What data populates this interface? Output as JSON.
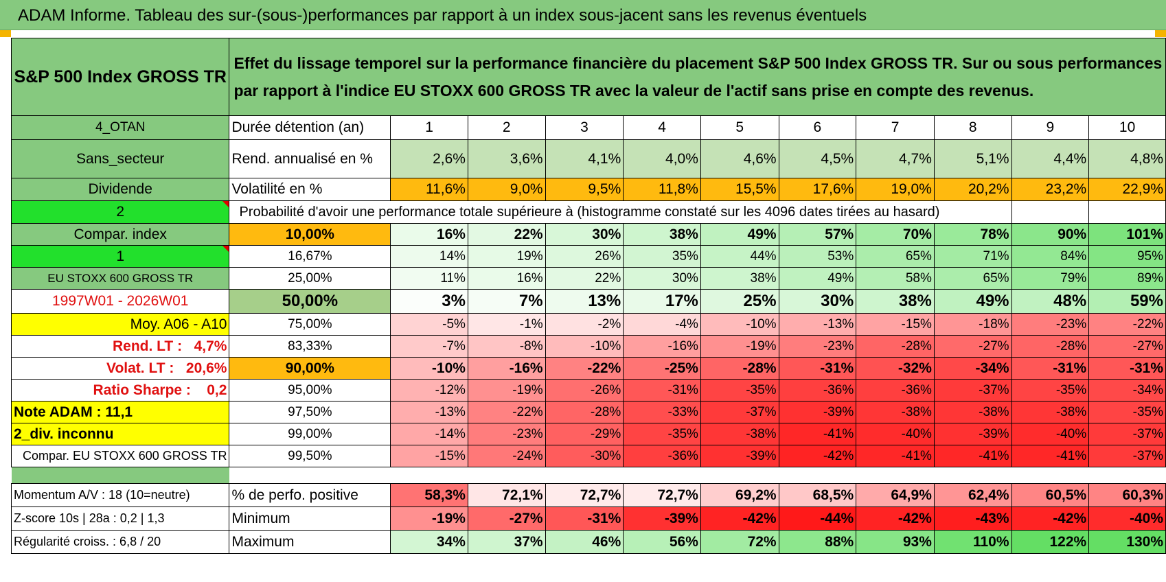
{
  "title": "ADAM Informe. Tableau des sur-(sous-)performances par rapport à un index sous-jacent sans les revenus éventuels",
  "header": {
    "asset": "S&P 500 Index GROSS TR",
    "description": "Effet du lissage temporel sur la performance financière du placement S&P 500 Index GROSS TR. Sur ou sous performances par rapport à l'indice EU STOXX 600 GROSS TR avec la valeur de l'actif sans prise en compte des revenus."
  },
  "side_labels": {
    "region": "4_OTAN",
    "sector": "Sans_secteur",
    "income": "Dividende",
    "sel_a": "2",
    "compar_index": "Compar. index",
    "sel_b": "1",
    "index_name": "EU STOXX 600 GROSS TR",
    "period": "1997W01 - 2026W01",
    "moy": "Moy. A06 - A10",
    "rend_lt_label": "Rend. LT :",
    "rend_lt_value": "4,7%",
    "volat_lt_label": "Volat. LT :",
    "volat_lt_value": "20,6%",
    "sharpe_label": "Ratio Sharpe :",
    "sharpe_value": "0,2",
    "note_adam": "Note ADAM : 11,1",
    "div_inconnu": "2_div. inconnu",
    "compar_name": "Compar. EU STOXX 600 GROSS TR"
  },
  "row_labels": {
    "duration": "Durée détention (an)",
    "rend": "Rend. annualisé en %",
    "vol": "Volatilité en %",
    "probability": "Probabilité d'avoir une performance totale supérieure à (histogramme constaté sur les 4096 dates tirées au hasard)"
  },
  "years": [
    "1",
    "2",
    "3",
    "4",
    "5",
    "6",
    "7",
    "8",
    "9",
    "10"
  ],
  "rend_annualise": [
    "2,6%",
    "3,6%",
    "4,1%",
    "4,0%",
    "4,6%",
    "4,5%",
    "4,7%",
    "5,1%",
    "4,4%",
    "4,8%"
  ],
  "volatilite": [
    "11,6%",
    "9,0%",
    "9,5%",
    "11,8%",
    "15,5%",
    "17,6%",
    "19,0%",
    "20,2%",
    "23,2%",
    "22,9%"
  ],
  "prob_rows": [
    {
      "pct": "10,00%",
      "values": [
        "16%",
        "22%",
        "30%",
        "38%",
        "49%",
        "57%",
        "70%",
        "78%",
        "90%",
        "101%"
      ]
    },
    {
      "pct": "16,67%",
      "values": [
        "14%",
        "19%",
        "26%",
        "35%",
        "44%",
        "53%",
        "65%",
        "71%",
        "84%",
        "95%"
      ]
    },
    {
      "pct": "25,00%",
      "values": [
        "11%",
        "16%",
        "22%",
        "30%",
        "38%",
        "49%",
        "58%",
        "65%",
        "79%",
        "89%"
      ]
    },
    {
      "pct": "50,00%",
      "values": [
        "3%",
        "7%",
        "13%",
        "17%",
        "25%",
        "30%",
        "38%",
        "49%",
        "48%",
        "59%"
      ]
    },
    {
      "pct": "75,00%",
      "values": [
        "-5%",
        "-1%",
        "-2%",
        "-4%",
        "-10%",
        "-13%",
        "-15%",
        "-18%",
        "-23%",
        "-22%"
      ]
    },
    {
      "pct": "83,33%",
      "values": [
        "-7%",
        "-8%",
        "-10%",
        "-16%",
        "-19%",
        "-23%",
        "-28%",
        "-27%",
        "-28%",
        "-27%"
      ]
    },
    {
      "pct": "90,00%",
      "values": [
        "-10%",
        "-16%",
        "-22%",
        "-25%",
        "-28%",
        "-31%",
        "-32%",
        "-34%",
        "-31%",
        "-31%"
      ]
    },
    {
      "pct": "95,00%",
      "values": [
        "-12%",
        "-19%",
        "-26%",
        "-31%",
        "-35%",
        "-36%",
        "-36%",
        "-37%",
        "-35%",
        "-34%"
      ]
    },
    {
      "pct": "97,50%",
      "values": [
        "-13%",
        "-22%",
        "-28%",
        "-33%",
        "-37%",
        "-39%",
        "-38%",
        "-38%",
        "-38%",
        "-35%"
      ]
    },
    {
      "pct": "99,00%",
      "values": [
        "-14%",
        "-23%",
        "-29%",
        "-35%",
        "-38%",
        "-41%",
        "-40%",
        "-39%",
        "-40%",
        "-37%"
      ]
    },
    {
      "pct": "99,50%",
      "values": [
        "-15%",
        "-24%",
        "-30%",
        "-36%",
        "-39%",
        "-42%",
        "-41%",
        "-41%",
        "-41%",
        "-37%"
      ]
    }
  ],
  "stats": [
    {
      "side": "Momentum A/V : 18 (10=neutre)",
      "label": "% de perfo. positive",
      "values": [
        "58,3%",
        "72,1%",
        "72,7%",
        "72,7%",
        "69,2%",
        "68,5%",
        "64,9%",
        "62,4%",
        "60,5%",
        "60,3%"
      ]
    },
    {
      "side": "Z-score 10s | 28a : 0,2 | 1,3",
      "label": "Minimum",
      "values": [
        "-19%",
        "-27%",
        "-31%",
        "-39%",
        "-42%",
        "-44%",
        "-42%",
        "-43%",
        "-42%",
        "-40%"
      ]
    },
    {
      "side": "Régularité croiss. : 6,8 / 20",
      "label": "Maximum",
      "values": [
        "34%",
        "37%",
        "46%",
        "56%",
        "72%",
        "88%",
        "93%",
        "110%",
        "122%",
        "130%"
      ]
    }
  ],
  "colors": {
    "header_green": "#86c97f",
    "bright_green": "#22e02c",
    "yellow": "#ffff00",
    "orange": "#ffba0f",
    "positive_green": "#5bd95b",
    "negative_red": "#ff1a1a"
  }
}
